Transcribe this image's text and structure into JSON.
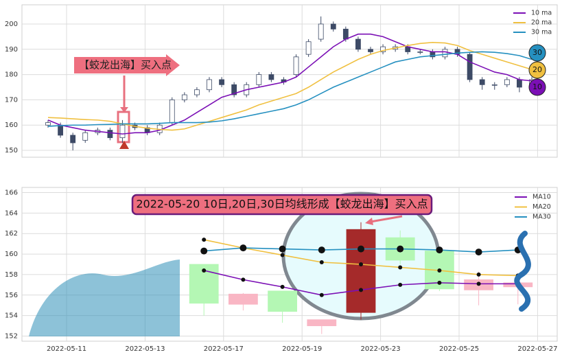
{
  "chart_data": [
    {
      "type": "candlestick",
      "ylim": [
        147.3,
        207.6
      ],
      "yticks": [
        150,
        160,
        170,
        180,
        190,
        200
      ],
      "grid": true,
      "up_color": "#ffffff",
      "down_color": "#3d4a66",
      "open": [
        160,
        160,
        156,
        154,
        157,
        158,
        155,
        160,
        159,
        157,
        161,
        170,
        172,
        174,
        178,
        176,
        172,
        176,
        180,
        178,
        180,
        188,
        194,
        200,
        198,
        194,
        190,
        189,
        190,
        191,
        189,
        189,
        187,
        190,
        188,
        178,
        176,
        176,
        178,
        176
      ],
      "close": [
        161,
        156,
        153,
        157,
        158,
        155,
        160,
        159,
        157,
        160,
        170,
        172,
        174,
        178,
        176,
        172,
        176,
        180,
        178,
        177,
        187,
        193,
        200,
        198,
        194,
        190,
        189,
        191,
        191,
        189,
        189,
        187,
        190,
        188,
        178,
        176,
        176,
        178,
        175,
        178
      ],
      "high": [
        162,
        161,
        157,
        158,
        159,
        159,
        162,
        161,
        160,
        161,
        171,
        173,
        175,
        179,
        179,
        177,
        177,
        181,
        181,
        179,
        188,
        194,
        203,
        201,
        199,
        195,
        191,
        192,
        192,
        192,
        190,
        190,
        191,
        191,
        189,
        179,
        177,
        179,
        179,
        179
      ],
      "low": [
        159,
        155,
        150,
        153,
        156,
        154,
        153,
        158,
        156,
        156,
        160,
        169,
        171,
        173,
        175,
        171,
        171,
        175,
        177,
        176,
        179,
        187,
        193,
        197,
        193,
        189,
        188,
        188,
        189,
        188,
        188,
        186,
        186,
        187,
        177,
        174,
        174,
        175,
        173,
        175
      ],
      "series": [
        {
          "name": "10 ma",
          "color": "#7b0fb5",
          "values": [
            162,
            160,
            159,
            158,
            157.5,
            157,
            156.5,
            157,
            157,
            158,
            160,
            162,
            165,
            168,
            171,
            172.5,
            174,
            175,
            176,
            177,
            179,
            183,
            187,
            191,
            194,
            196,
            196,
            195,
            193,
            191,
            190,
            189,
            189,
            188,
            185,
            183,
            181,
            180,
            178,
            177.5
          ]
        },
        {
          "name": "20 ma",
          "color": "#f0c040",
          "values": [
            163,
            162.8,
            162.5,
            162.2,
            162,
            161.5,
            160.5,
            159.5,
            158.8,
            158.3,
            158,
            158.5,
            160,
            161.5,
            163,
            164.5,
            166,
            168,
            169.5,
            171,
            172.5,
            175,
            178,
            181,
            183.5,
            186,
            188,
            189.5,
            190.5,
            191.5,
            192.3,
            192.7,
            192.5,
            191.5,
            189.5,
            188,
            186.5,
            185,
            183.5,
            182
          ]
        },
        {
          "name": "30 ma",
          "color": "#2590c0",
          "values": [
            159.5,
            159.8,
            160,
            160,
            160.2,
            160.3,
            160.5,
            160.5,
            160.5,
            160.7,
            161,
            161,
            161,
            161.2,
            161.7,
            162.5,
            163.5,
            164.5,
            165.5,
            166.5,
            168,
            170,
            172.5,
            175,
            177,
            179,
            181,
            183,
            185,
            186,
            187,
            187.5,
            188,
            188.5,
            188.8,
            189,
            188.8,
            188.3,
            187.5,
            186
          ]
        }
      ],
      "annotation": "【蛟龙出海】买入点",
      "end_labels": [
        30,
        20,
        10
      ]
    },
    {
      "type": "candlestick",
      "categories": [
        "2022-05-11",
        null,
        "2022-05-13",
        null,
        "2022-05-17",
        null,
        "2022-05-19",
        null,
        "2022-05-23",
        null,
        "2022-05-25",
        null,
        "2022-05-27"
      ],
      "ylim": [
        151.5,
        166.5
      ],
      "yticks": [
        152,
        154,
        156,
        158,
        160,
        162,
        164,
        166
      ],
      "grid": true,
      "markers": true,
      "open": [
        null,
        null,
        null,
        159.0,
        155.1,
        156.4,
        153.0,
        154.3,
        161.6,
        160.3,
        156.5,
        156.8,
        null
      ],
      "close": [
        null,
        null,
        null,
        155.2,
        156.1,
        154.4,
        153.6,
        162.4,
        159.4,
        156.6,
        157.5,
        157.2,
        null
      ],
      "high": [
        null,
        null,
        null,
        159.0,
        156.2,
        156.4,
        153.6,
        163.1,
        162.3,
        160.5,
        158.3,
        157.8,
        null
      ],
      "low": [
        null,
        null,
        null,
        154.0,
        154.5,
        153.3,
        152.2,
        153.6,
        159.0,
        156.4,
        155.0,
        155.1,
        null
      ],
      "colors": [
        null,
        null,
        null,
        "#b4f7b4",
        "#f9b6c4",
        "#b4f7b4",
        "#f9b6c4",
        "#a52a2a",
        "#b4f7b4",
        "#b4f7b4",
        "#f9b6c4",
        "#f9b6c4",
        null
      ],
      "series": [
        {
          "name": "MA10",
          "color": "#7b0fb5",
          "values": [
            null,
            null,
            null,
            158.4,
            157.5,
            156.8,
            156.0,
            156.5,
            157.0,
            157.2,
            157.1,
            157.1,
            null
          ]
        },
        {
          "name": "MA20",
          "color": "#f0c040",
          "values": [
            null,
            null,
            null,
            161.4,
            160.6,
            159.9,
            159.2,
            159.0,
            158.7,
            158.4,
            158.0,
            157.9,
            null
          ]
        },
        {
          "name": "MA30",
          "color": "#2590c0",
          "values": [
            null,
            null,
            null,
            160.3,
            160.6,
            160.5,
            160.4,
            160.5,
            160.5,
            160.4,
            160.2,
            160.4,
            null
          ]
        }
      ],
      "annotation": "2022-05-20 10日,20日,30日均线形成【蛟龙出海】买入点"
    }
  ]
}
